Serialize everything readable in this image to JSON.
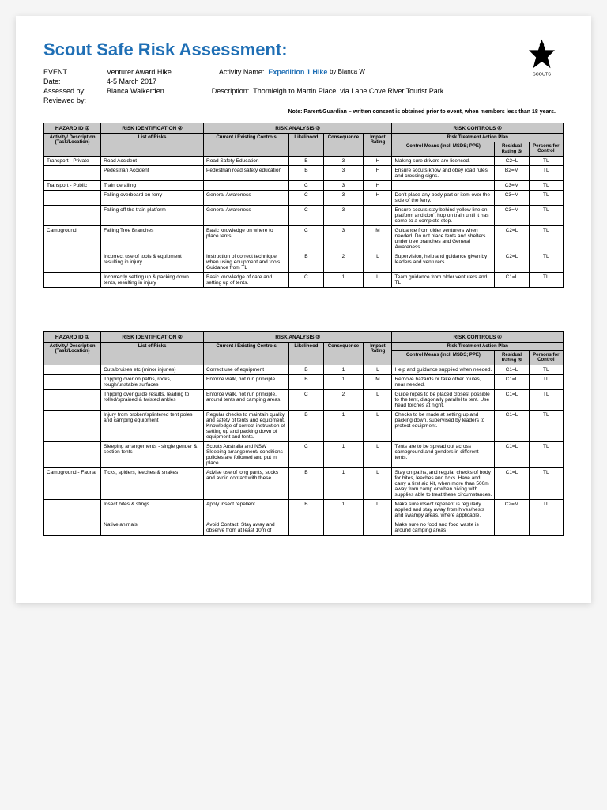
{
  "title": "Scout Safe Risk Assessment:",
  "header": {
    "event_label": "EVENT",
    "event": "Venturer Award Hike",
    "date_label": "Date:",
    "date": "4-5 March 2017",
    "assessed_label": "Assessed by:",
    "assessed": "Bianca Walkerden",
    "reviewed_label": "Reviewed by:",
    "reviewed": "",
    "activity_label": "Activity Name:",
    "activity": "Expedition 1 Hike",
    "author": "by Bianca W",
    "desc_label": "Description:",
    "desc": "Thornleigh to Martin Place, via Lane Cove River Tourist Park"
  },
  "note": "Note: Parent/Guardian – written consent is obtained prior to event, when members less than 18 years.",
  "table_headers": {
    "hazard_id": "HAZARD ID ①",
    "risk_ident": "RISK IDENTIFICATION ②",
    "risk_analysis": "RISK ANALYSIS ③",
    "risk_controls": "RISK CONTROLS ④",
    "activity_desc": "Activity/ Description (Task/Location)",
    "list_risks": "List of Risks",
    "current_controls": "Current / Existing Controls",
    "likelihood": "Likelihood",
    "consequence": "Consequence",
    "impact": "Impact Rating",
    "treatment_plan": "Risk Treatment Action Plan",
    "control_means": "Control Means (incl. MSDS; PPE)",
    "residual": "Residual Rating ⑤",
    "persons": "Persons for Control"
  },
  "rows1": [
    {
      "hazard": "Transport - Private",
      "risk": "Road Accident",
      "controls": "Road Safety Education",
      "like": "B",
      "cons": "3",
      "impact": "H",
      "means": "Making sure drivers are licenced.",
      "resid": "C2=L",
      "person": "TL"
    },
    {
      "hazard": "",
      "risk": "Pedestrian Accident",
      "controls": "Pedestrian road safety education",
      "like": "B",
      "cons": "3",
      "impact": "H",
      "means": "Ensure scouts know and obey road rules and crossing signs.",
      "resid": "B2=M",
      "person": "TL"
    },
    {
      "hazard": "Transport - Public",
      "risk": "Train derailing",
      "controls": "",
      "like": "C",
      "cons": "3",
      "impact": "H",
      "means": "",
      "resid": "C3=M",
      "person": "TL"
    },
    {
      "hazard": "",
      "risk": "Falling overboard on ferry",
      "controls": "General Awareness",
      "like": "C",
      "cons": "3",
      "impact": "H",
      "means": "Don't place any body part or item over the side of the ferry.",
      "resid": "C3=M",
      "person": "TL"
    },
    {
      "hazard": "",
      "risk": "Falling off the train platform",
      "controls": "General Awareness",
      "like": "C",
      "cons": "3",
      "impact": "",
      "means": "Ensure scouts stay behind yellow line on platform and don't hop on train until it has come to a complete stop.",
      "resid": "C3=M",
      "person": "TL"
    },
    {
      "hazard": "Campground",
      "risk": "Falling Tree Branches",
      "controls": "Basic knowledge on where to place tents.",
      "like": "C",
      "cons": "3",
      "impact": "M",
      "means": "Guidance from older venturers when needed. Do not place tents and shelters under tree branches and General Awareness.",
      "resid": "C2=L",
      "person": "TL"
    },
    {
      "hazard": "",
      "risk": "Incorrect use of tools & equipment resulting in injury",
      "controls": "Instruction of correct technique when using equipment and tools. Guidance from TL",
      "like": "B",
      "cons": "2",
      "impact": "L",
      "means": "Supervision, help and guidance given by leaders and venturers.",
      "resid": "C2=L",
      "person": "TL"
    },
    {
      "hazard": "",
      "risk": "Incorrectly setting up & packing down tents, resulting in injury",
      "controls": "Basic knowledge of care and setting up of tents.",
      "like": "C",
      "cons": "1",
      "impact": "L",
      "means": "Team guidance from older venturers and TL",
      "resid": "C1=L",
      "person": "TL"
    }
  ],
  "rows2": [
    {
      "hazard": "",
      "risk": "Cuts/bruises etc (minor injuries)",
      "controls": "Correct use of equipment",
      "like": "B",
      "cons": "1",
      "impact": "L",
      "means": "Help and guidance supplied when needed.",
      "resid": "C1=L",
      "person": "TL"
    },
    {
      "hazard": "",
      "risk": "Tripping over on paths, rocks, rough/unstable surfaces",
      "controls": "Enforce walk, not run principle.",
      "like": "B",
      "cons": "1",
      "impact": "M",
      "means": "Remove hazards or take other routes, near needed.",
      "resid": "C1=L",
      "person": "TL"
    },
    {
      "hazard": "",
      "risk": "Tripping over guide results, leading to rolled/sprained & twisted ankles",
      "controls": "Enforce walk, not run principle, around tents and camping areas.",
      "like": "C",
      "cons": "2",
      "impact": "L",
      "means": "Guide ropes to be placed closest possible to the tent, diagonally parallel to tent. Use head torches at night.",
      "resid": "C1=L",
      "person": "TL"
    },
    {
      "hazard": "",
      "risk": "Injury from broken/splintered tent poles and camping equipment",
      "controls": "Regular checks to maintain quality and safety of tents and equipment. Knowledge of correct instruction of setting up and packing down of equipment and tents.",
      "like": "B",
      "cons": "1",
      "impact": "L",
      "means": "Checks to be made at setting up and packing down, supervised by leaders to protect equipment.",
      "resid": "C1=L",
      "person": "TL"
    },
    {
      "hazard": "",
      "risk": "Sleeping arrangements - single gender & section tents",
      "controls": "Scouts Australia and NSW Sleeping arrangement/ conditions policies are followed and put in place.",
      "like": "C",
      "cons": "1",
      "impact": "L",
      "means": "Tents are to be spread out across campground and genders in different tents.",
      "resid": "C1=L",
      "person": "TL"
    },
    {
      "hazard": "Campground - Fauna",
      "risk": "Ticks, spiders, leeches & snakes",
      "controls": "Advise use of long pants, socks and avoid contact with these.",
      "like": "B",
      "cons": "1",
      "impact": "L",
      "means": "Stay on paths, and regular checks of body for bites, leeches and ticks. Have and carry a first aid kit, when more than 500m away from camp or when hiking with supplies able to treat these circumstances.",
      "resid": "C1=L",
      "person": "TL"
    },
    {
      "hazard": "",
      "risk": "Insect bites & stings",
      "controls": "Apply insect repellent",
      "like": "B",
      "cons": "1",
      "impact": "L",
      "means": "Make sure insect repellent is regularly applied and stay away from hives/nests and swampy areas, where applicable.",
      "resid": "C2=M",
      "person": "TL"
    },
    {
      "hazard": "",
      "risk": "Native animals",
      "controls": "Avoid Contact. Stay away and observe from at least 10m of",
      "like": "",
      "cons": "",
      "impact": "",
      "means": "Make sure no food and food waste is around camping areas",
      "resid": "",
      "person": ""
    }
  ]
}
